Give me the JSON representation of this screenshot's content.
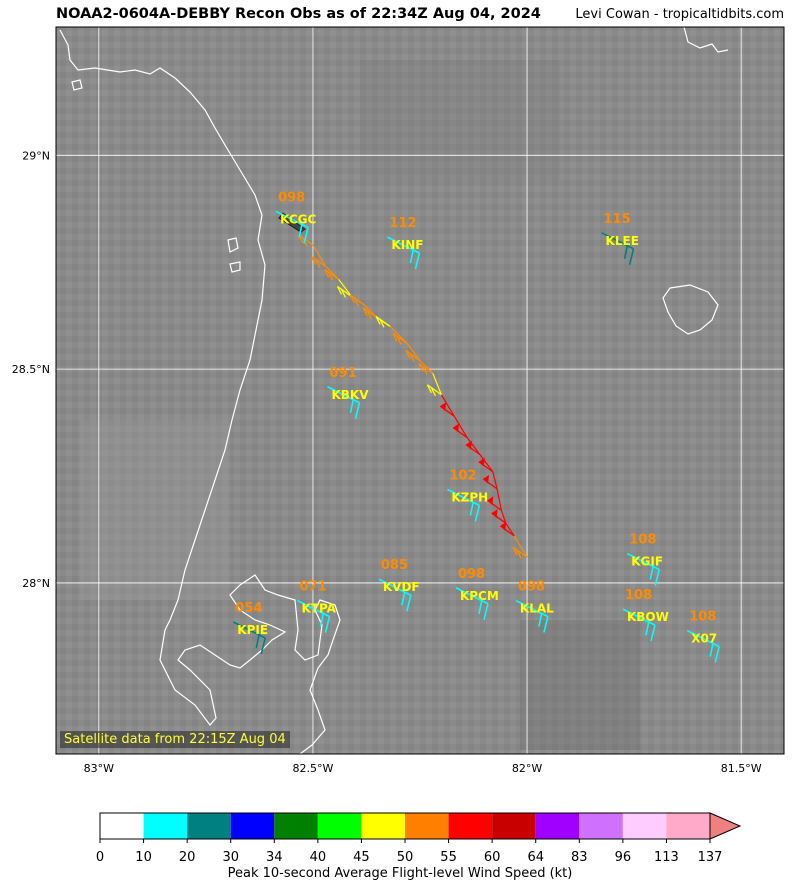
{
  "header": {
    "title": "NOAA2-0604A-DEBBY Recon Obs as of 22:34Z Aug 04, 2024",
    "credit": "Levi Cowan - tropicaltidbits.com"
  },
  "map": {
    "lon_range": [
      -83.1,
      -81.4
    ],
    "lat_range": [
      27.6,
      29.3
    ],
    "lon_ticks": [
      {
        "value": -83.0,
        "label": "83°W"
      },
      {
        "value": -82.5,
        "label": "82.5°W"
      },
      {
        "value": -82.0,
        "label": "82°W"
      },
      {
        "value": -81.5,
        "label": "81.5°W"
      }
    ],
    "lat_ticks": [
      {
        "value": 29.0,
        "label": "29°N"
      },
      {
        "value": 28.5,
        "label": "28.5°N"
      },
      {
        "value": 28.0,
        "label": "28°N"
      }
    ],
    "satellite_note": "Satellite data from 22:15Z Aug 04"
  },
  "stations": [
    {
      "code": "KCGC",
      "value": "098",
      "lon": -82.53,
      "lat": 28.85,
      "color": "#00ffff"
    },
    {
      "code": "KINF",
      "value": "112",
      "lon": -82.27,
      "lat": 28.79,
      "color": "#00ffff"
    },
    {
      "code": "KLEE",
      "value": "115",
      "lon": -81.77,
      "lat": 28.8,
      "color": "#008080"
    },
    {
      "code": "KBKV",
      "value": "091",
      "lon": -82.41,
      "lat": 28.44,
      "color": "#00ffff"
    },
    {
      "code": "KZPH",
      "value": "102",
      "lon": -82.13,
      "lat": 28.2,
      "color": "#00ffff"
    },
    {
      "code": "KGIF",
      "value": "108",
      "lon": -81.71,
      "lat": 28.05,
      "color": "#00ffff"
    },
    {
      "code": "KVDF",
      "value": "085",
      "lon": -82.29,
      "lat": 27.99,
      "color": "#00ffff"
    },
    {
      "code": "KPCM",
      "value": "098",
      "lon": -82.11,
      "lat": 27.97,
      "color": "#00ffff"
    },
    {
      "code": "KTPA",
      "value": "071",
      "lon": -82.48,
      "lat": 27.94,
      "color": "#00ffff"
    },
    {
      "code": "KLAL",
      "value": "098",
      "lon": -81.97,
      "lat": 27.94,
      "color": "#00ffff"
    },
    {
      "code": "KPIE",
      "value": "054",
      "lon": -82.63,
      "lat": 27.89,
      "color": "#008080"
    },
    {
      "code": "KBOW",
      "value": "108",
      "lon": -81.72,
      "lat": 27.92,
      "color": "#00ffff"
    },
    {
      "code": "X07",
      "value": "108",
      "lon": -81.57,
      "lat": 27.87,
      "color": "#00ffff"
    }
  ],
  "recon_obs": [
    {
      "lon": -82.5,
      "lat": 28.79,
      "color": "#ff8c00"
    },
    {
      "lon": -82.47,
      "lat": 28.74,
      "color": "#ff8c00"
    },
    {
      "lon": -82.44,
      "lat": 28.71,
      "color": "#ff8c00"
    },
    {
      "lon": -82.41,
      "lat": 28.67,
      "color": "#ffff00"
    },
    {
      "lon": -82.38,
      "lat": 28.65,
      "color": "#ff8c00"
    },
    {
      "lon": -82.35,
      "lat": 28.62,
      "color": "#ff8c00"
    },
    {
      "lon": -82.32,
      "lat": 28.6,
      "color": "#ffff00"
    },
    {
      "lon": -82.28,
      "lat": 28.56,
      "color": "#ff8c00"
    },
    {
      "lon": -82.25,
      "lat": 28.52,
      "color": "#ff8c00"
    },
    {
      "lon": -82.22,
      "lat": 28.49,
      "color": "#ff8c00"
    },
    {
      "lon": -82.2,
      "lat": 28.44,
      "color": "#ffff00"
    },
    {
      "lon": -82.17,
      "lat": 28.39,
      "color": "#ff0000"
    },
    {
      "lon": -82.14,
      "lat": 28.34,
      "color": "#ff0000"
    },
    {
      "lon": -82.11,
      "lat": 28.3,
      "color": "#ff0000"
    },
    {
      "lon": -82.08,
      "lat": 28.26,
      "color": "#ff0000"
    },
    {
      "lon": -82.07,
      "lat": 28.22,
      "color": "#ff0000"
    },
    {
      "lon": -82.06,
      "lat": 28.17,
      "color": "#ff0000"
    },
    {
      "lon": -82.05,
      "lat": 28.14,
      "color": "#ff0000"
    },
    {
      "lon": -82.03,
      "lat": 28.11,
      "color": "#ff0000"
    },
    {
      "lon": -82.0,
      "lat": 28.06,
      "color": "#ff8c00"
    }
  ],
  "colorbar": {
    "title": "Peak 10-second Average Flight-level Wind Speed (kt)",
    "ticks": [
      "0",
      "10",
      "20",
      "30",
      "34",
      "40",
      "45",
      "50",
      "55",
      "60",
      "64",
      "83",
      "96",
      "113",
      "137"
    ],
    "colors": [
      "#ffffff",
      "#00ffff",
      "#008080",
      "#0000ff",
      "#008000",
      "#00ff00",
      "#ffff00",
      "#ff8000",
      "#ff0000",
      "#c80000",
      "#a000ff",
      "#d070ff",
      "#ffccff",
      "#ffaac8"
    ],
    "extend_color": "#f08080"
  }
}
